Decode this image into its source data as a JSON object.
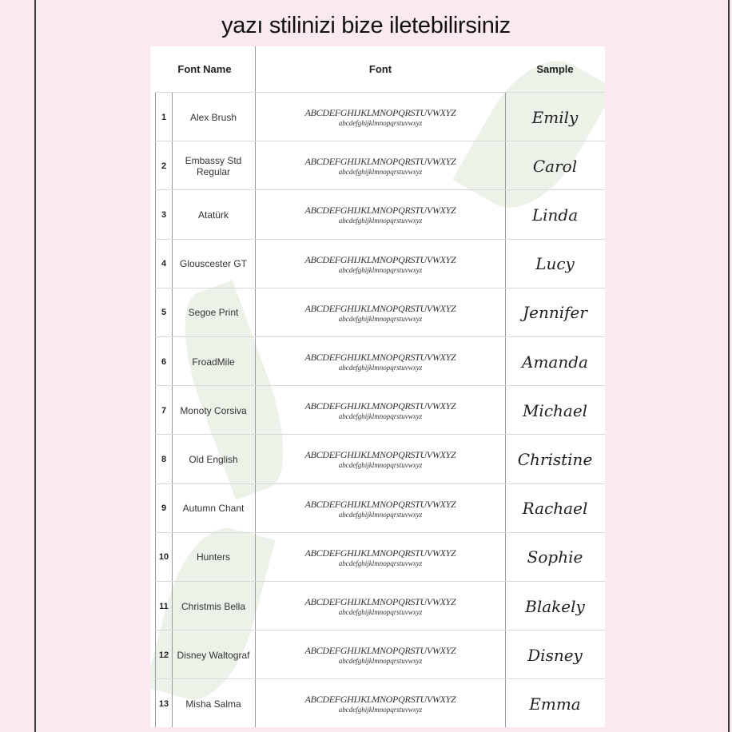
{
  "title": "yazı stilinizi bize iletebilirsiniz",
  "headers": {
    "name": "Font Name",
    "font": "Font",
    "sample": "Sample"
  },
  "alphabet": {
    "upper": "ABCDEFGHIJKLMNOPQRSTUVWXYZ",
    "lower": "abcdefghijklmnopqrstuvwxyz"
  },
  "rows": [
    {
      "num": "1",
      "name": "Alex Brush",
      "sample": "Emily"
    },
    {
      "num": "2",
      "name": "Embassy Std Regular",
      "sample": "Carol"
    },
    {
      "num": "3",
      "name": "Atatürk",
      "sample": "Linda"
    },
    {
      "num": "4",
      "name": "Glouscester GT",
      "sample": "Lucy"
    },
    {
      "num": "5",
      "name": "Segoe Print",
      "sample": "Jennifer"
    },
    {
      "num": "6",
      "name": "FroadMile",
      "sample": "Amanda"
    },
    {
      "num": "7",
      "name": "Monoty Corsiva",
      "sample": "Michael"
    },
    {
      "num": "8",
      "name": "Old English",
      "sample": "Christine"
    },
    {
      "num": "9",
      "name": "Autumn Chant",
      "sample": "Rachael"
    },
    {
      "num": "10",
      "name": "Hunters",
      "sample": "Sophie"
    },
    {
      "num": "11",
      "name": "Christmis Bella",
      "sample": "Blakely"
    },
    {
      "num": "12",
      "name": "Disney Waltograf",
      "sample": "Disney"
    },
    {
      "num": "13",
      "name": "Misha Salma",
      "sample": "Emma"
    }
  ]
}
